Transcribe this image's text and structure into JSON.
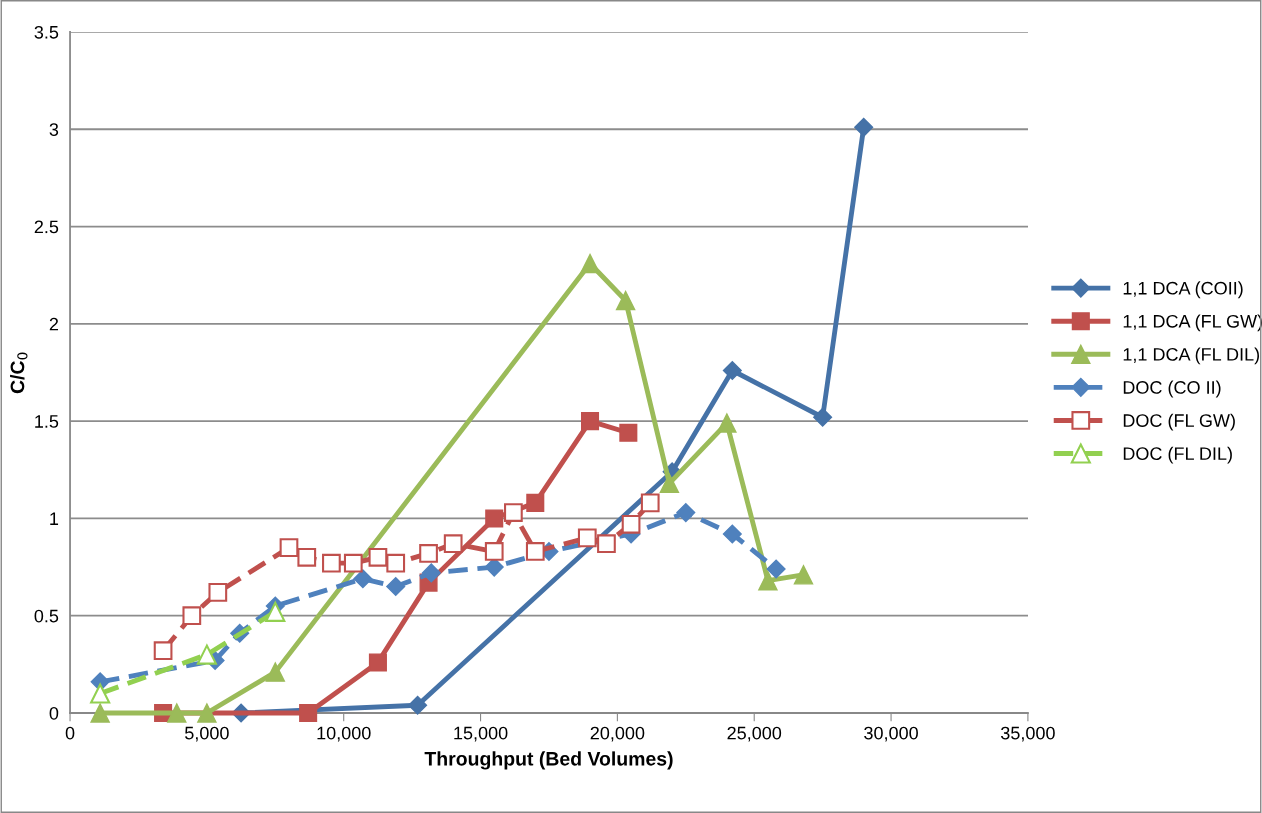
{
  "chart_data": {
    "type": "line",
    "xlabel": "Throughput (Bed Volumes)",
    "ylabel": "C/C$_{0}$",
    "xlim": [
      0,
      35000
    ],
    "xticks": [
      0,
      {
        "value": 5000,
        "label": "5,000"
      },
      {
        "value": 10000,
        "label": "10,000"
      },
      {
        "value": 15000,
        "label": "15,000"
      },
      {
        "value": 20000,
        "label": "20,000"
      },
      {
        "value": 25000,
        "label": "25,000"
      },
      {
        "value": 30000,
        "label": "30,000"
      },
      {
        "value": 35000,
        "label": "35,000"
      }
    ],
    "ylim": [
      0,
      3.5
    ],
    "yticks": [
      0,
      0.5,
      1,
      1.5,
      2,
      2.5,
      3,
      3.5
    ],
    "grid": "y",
    "legend": "right",
    "series": [
      {
        "name": "1,1 DCA (COII)",
        "color": "#4572a7",
        "marker": "diamond",
        "line_style": "solid",
        "x": [
          6250,
          12700,
          22000,
          24200,
          27500,
          29000
        ],
        "values": [
          0,
          0.04,
          1.24,
          1.76,
          1.52,
          3.01
        ]
      },
      {
        "name": "1,1 DCA (FL GW)",
        "color": "#c0504d",
        "marker": "square",
        "line_style": "solid",
        "x": [
          3400,
          8700,
          11250,
          13100,
          15500,
          17000,
          19000,
          20400
        ],
        "values": [
          0,
          0,
          0.26,
          0.67,
          1.0,
          1.08,
          1.5,
          1.44
        ]
      },
      {
        "name": "1,1 DCA (FL DIL)",
        "color": "#9bbb59",
        "marker": "triangle",
        "line_style": "solid",
        "x": [
          1100,
          3900,
          5000,
          7500,
          19000,
          20300,
          21900,
          24000,
          25500,
          26800
        ],
        "values": [
          0,
          0,
          0,
          0.21,
          2.31,
          2.12,
          1.18,
          1.49,
          0.68,
          0.71
        ]
      },
      {
        "name": "DOC (CO II)",
        "color": "#4f81bd",
        "marker": "diamond",
        "line_style": "dashed",
        "x": [
          1100,
          5300,
          6200,
          7500,
          10700,
          11900,
          13200,
          15500,
          17500,
          20500,
          22500,
          24200,
          25800
        ],
        "values": [
          0.16,
          0.27,
          0.41,
          0.55,
          0.69,
          0.65,
          0.72,
          0.75,
          0.83,
          0.92,
          1.03,
          0.92,
          0.74
        ]
      },
      {
        "name": "DOC (FL GW)",
        "color": "#c0504d",
        "marker": "square",
        "line_style": "dashed",
        "x": [
          3400,
          4450,
          5400,
          8000,
          8650,
          9550,
          10350,
          11250,
          11900,
          13100,
          14000,
          15500,
          16200,
          17000,
          18900,
          19600,
          20500,
          21200
        ],
        "values": [
          0.32,
          0.5,
          0.62,
          0.85,
          0.8,
          0.77,
          0.77,
          0.8,
          0.77,
          0.82,
          0.87,
          0.83,
          1.03,
          0.83,
          0.9,
          0.87,
          0.97,
          1.08
        ]
      },
      {
        "name": "DOC (FL DIL)",
        "color": "#92d050",
        "marker": "triangle",
        "line_style": "dashed",
        "x": [
          1100,
          5000,
          7500
        ],
        "values": [
          0.1,
          0.3,
          0.52
        ]
      }
    ]
  }
}
